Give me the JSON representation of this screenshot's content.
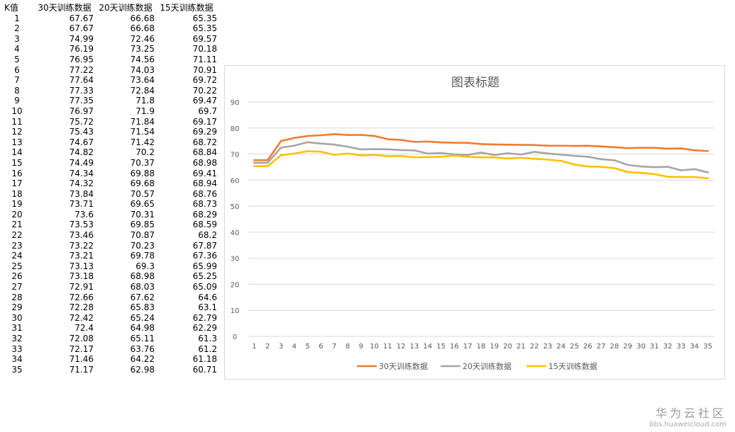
{
  "table": {
    "headers": [
      "K值",
      "30天训练数据",
      "20天训练数据",
      "15天训练数据"
    ],
    "rows": [
      [
        "1",
        "67.67",
        "66.68",
        "65.35"
      ],
      [
        "2",
        "67.67",
        "66.68",
        "65.35"
      ],
      [
        "3",
        "74.99",
        "72.46",
        "69.57"
      ],
      [
        "4",
        "76.19",
        "73.25",
        "70.18"
      ],
      [
        "5",
        "76.95",
        "74.56",
        "71.11"
      ],
      [
        "6",
        "77.22",
        "74.03",
        "70.91"
      ],
      [
        "7",
        "77.64",
        "73.64",
        "69.72"
      ],
      [
        "8",
        "77.33",
        "72.84",
        "70.22"
      ],
      [
        "9",
        "77.35",
        "71.8",
        "69.47"
      ],
      [
        "10",
        "76.97",
        "71.9",
        "69.7"
      ],
      [
        "11",
        "75.72",
        "71.84",
        "69.17"
      ],
      [
        "12",
        "75.43",
        "71.54",
        "69.29"
      ],
      [
        "13",
        "74.67",
        "71.42",
        "68.72"
      ],
      [
        "14",
        "74.82",
        "70.2",
        "68.84"
      ],
      [
        "15",
        "74.49",
        "70.37",
        "68.98"
      ],
      [
        "16",
        "74.34",
        "69.88",
        "69.41"
      ],
      [
        "17",
        "74.32",
        "69.68",
        "68.94"
      ],
      [
        "18",
        "73.84",
        "70.57",
        "68.76"
      ],
      [
        "19",
        "73.71",
        "69.65",
        "68.73"
      ],
      [
        "20",
        "73.6",
        "70.31",
        "68.29"
      ],
      [
        "21",
        "73.53",
        "69.85",
        "68.59"
      ],
      [
        "22",
        "73.46",
        "70.87",
        "68.2"
      ],
      [
        "23",
        "73.22",
        "70.23",
        "67.87"
      ],
      [
        "24",
        "73.21",
        "69.78",
        "67.36"
      ],
      [
        "25",
        "73.13",
        "69.3",
        "65.99"
      ],
      [
        "26",
        "73.18",
        "68.98",
        "65.25"
      ],
      [
        "27",
        "72.91",
        "68.03",
        "65.09"
      ],
      [
        "28",
        "72.66",
        "67.62",
        "64.6"
      ],
      [
        "29",
        "72.28",
        "65.83",
        "63.1"
      ],
      [
        "30",
        "72.42",
        "65.24",
        "62.79"
      ],
      [
        "31",
        "72.4",
        "64.98",
        "62.29"
      ],
      [
        "32",
        "72.08",
        "65.11",
        "61.3"
      ],
      [
        "33",
        "72.17",
        "63.76",
        "61.2"
      ],
      [
        "34",
        "71.46",
        "64.22",
        "61.18"
      ],
      [
        "35",
        "71.17",
        "62.98",
        "60.71"
      ]
    ]
  },
  "chart_data": {
    "type": "line",
    "title": "图表标题",
    "xlabel": "",
    "ylabel": "",
    "x": [
      1,
      2,
      3,
      4,
      5,
      6,
      7,
      8,
      9,
      10,
      11,
      12,
      13,
      14,
      15,
      16,
      17,
      18,
      19,
      20,
      21,
      22,
      23,
      24,
      25,
      26,
      27,
      28,
      29,
      30,
      31,
      32,
      33,
      34,
      35
    ],
    "ylim": [
      0,
      90
    ],
    "yticks": [
      0,
      10,
      20,
      30,
      40,
      50,
      60,
      70,
      80,
      90
    ],
    "grid": true,
    "legend_position": "bottom",
    "series": [
      {
        "name": "30天训练数据",
        "color": "#ED7D31",
        "values": [
          67.67,
          67.67,
          74.99,
          76.19,
          76.95,
          77.22,
          77.64,
          77.33,
          77.35,
          76.97,
          75.72,
          75.43,
          74.67,
          74.82,
          74.49,
          74.34,
          74.32,
          73.84,
          73.71,
          73.6,
          73.53,
          73.46,
          73.22,
          73.21,
          73.13,
          73.18,
          72.91,
          72.66,
          72.28,
          72.42,
          72.4,
          72.08,
          72.17,
          71.46,
          71.17
        ]
      },
      {
        "name": "20天训练数据",
        "color": "#A5A5A5",
        "values": [
          66.68,
          66.68,
          72.46,
          73.25,
          74.56,
          74.03,
          73.64,
          72.84,
          71.8,
          71.9,
          71.84,
          71.54,
          71.42,
          70.2,
          70.37,
          69.88,
          69.68,
          70.57,
          69.65,
          70.31,
          69.85,
          70.87,
          70.23,
          69.78,
          69.3,
          68.98,
          68.03,
          67.62,
          65.83,
          65.24,
          64.98,
          65.11,
          63.76,
          64.22,
          62.98
        ]
      },
      {
        "name": "15天训练数据",
        "color": "#FFC000",
        "values": [
          65.35,
          65.35,
          69.57,
          70.18,
          71.11,
          70.91,
          69.72,
          70.22,
          69.47,
          69.7,
          69.17,
          69.29,
          68.72,
          68.84,
          68.98,
          69.41,
          68.94,
          68.76,
          68.73,
          68.29,
          68.59,
          68.2,
          67.87,
          67.36,
          65.99,
          65.25,
          65.09,
          64.6,
          63.1,
          62.79,
          62.29,
          61.3,
          61.2,
          61.18,
          60.71
        ]
      }
    ]
  },
  "watermark": {
    "name": "华为云社区",
    "url": "bbs.huaweicloud.com"
  }
}
